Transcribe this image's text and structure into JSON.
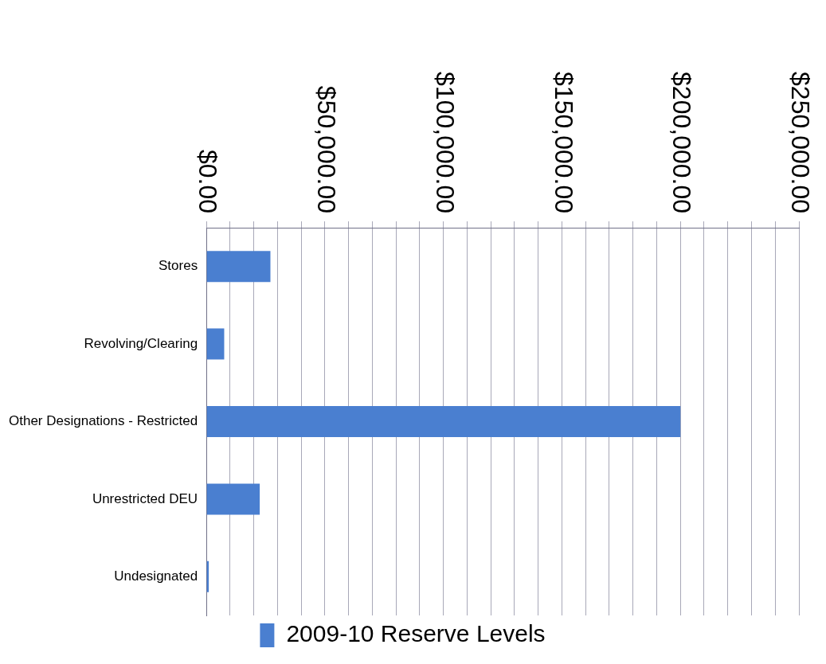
{
  "chart_data": {
    "type": "bar",
    "orientation": "horizontal",
    "categories": [
      "Stores",
      "Revolving/Clearing",
      "Other Designations - Restricted",
      "Unrestricted DEU",
      "Undesignated"
    ],
    "series": [
      {
        "name": "2009-10 Reserve Levels",
        "color": "#4a7fd0",
        "values": [
          27000,
          7500,
          200000,
          22500,
          1000
        ]
      }
    ],
    "xlim": [
      0,
      250000
    ],
    "xticks": [
      {
        "value": 0,
        "label": "$0.00"
      },
      {
        "value": 10000,
        "label": null
      },
      {
        "value": 20000,
        "label": null
      },
      {
        "value": 30000,
        "label": null
      },
      {
        "value": 40000,
        "label": null
      },
      {
        "value": 50000,
        "label": "$50,000.00"
      },
      {
        "value": 60000,
        "label": null
      },
      {
        "value": 70000,
        "label": null
      },
      {
        "value": 80000,
        "label": null
      },
      {
        "value": 90000,
        "label": null
      },
      {
        "value": 100000,
        "label": "$100,000.00"
      },
      {
        "value": 110000,
        "label": null
      },
      {
        "value": 120000,
        "label": null
      },
      {
        "value": 130000,
        "label": null
      },
      {
        "value": 140000,
        "label": null
      },
      {
        "value": 150000,
        "label": "$150,000.00"
      },
      {
        "value": 160000,
        "label": null
      },
      {
        "value": 170000,
        "label": null
      },
      {
        "value": 180000,
        "label": null
      },
      {
        "value": 190000,
        "label": null
      },
      {
        "value": 200000,
        "label": "$200,000.00"
      },
      {
        "value": 210000,
        "label": null
      },
      {
        "value": 220000,
        "label": null
      },
      {
        "value": 230000,
        "label": null
      },
      {
        "value": 240000,
        "label": null
      },
      {
        "value": 250000,
        "label": "$250,000.00"
      }
    ],
    "grid": "x",
    "legend": "bottom"
  }
}
